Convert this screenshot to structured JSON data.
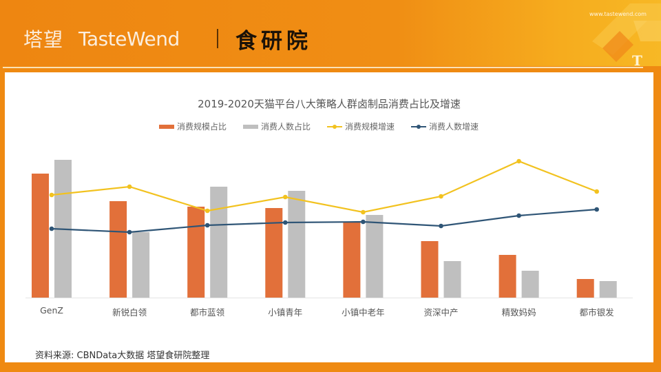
{
  "header": {
    "logo_cn": "塔望",
    "logo_en": "TasteWend",
    "institute": "食研院",
    "url": "www.tastewend.com",
    "corner_letter": "T"
  },
  "colors": {
    "brand_orange": "#ef8a12",
    "bar_scale": "#e2703a",
    "bar_people": "#bfbfbf",
    "line_scale_growth": "#f2c21f",
    "line_people_growth": "#2f5576"
  },
  "chart_data": {
    "type": "bar",
    "title": "2019-2020天猫平台八大策略人群卤制品消费占比及增速",
    "xlabel": "",
    "ylabel": "",
    "grid": false,
    "legend_position": "top",
    "categories": [
      "GenZ",
      "新锐白领",
      "都市蓝领",
      "小镇青年",
      "小镇中老年",
      "资深中产",
      "精致妈妈",
      "都市银发"
    ],
    "note": "No axis ticks shown; values are relative pixel heights (0-100 scale) estimated from bar/line positions.",
    "series": [
      {
        "name": "消费规模占比",
        "kind": "bar",
        "color": "#e2703a",
        "values": [
          90,
          70,
          66,
          65,
          55,
          41,
          31,
          13.5
        ]
      },
      {
        "name": "消费人数占比",
        "kind": "bar",
        "color": "#bfbfbf",
        "values": [
          100,
          47.5,
          80.5,
          77.5,
          60,
          26.5,
          19.5,
          12
        ]
      },
      {
        "name": "消费规模增速",
        "kind": "line",
        "color": "#f2c21f",
        "values": [
          74.5,
          80.5,
          63,
          73,
          62,
          73.5,
          99,
          77
        ]
      },
      {
        "name": "消费人数增速",
        "kind": "line",
        "color": "#2f5576",
        "values": [
          50,
          47.5,
          52.5,
          54.5,
          55,
          52,
          59.5,
          64
        ]
      }
    ]
  },
  "legend": [
    {
      "label": "消费规模占比",
      "type": "bar",
      "color": "#e2703a"
    },
    {
      "label": "消费人数占比",
      "type": "bar",
      "color": "#bfbfbf"
    },
    {
      "label": "消费规模增速",
      "type": "line",
      "color": "#f2c21f"
    },
    {
      "label": "消费人数增速",
      "type": "line",
      "color": "#2f5576"
    }
  ],
  "source": "资料来源:  CBNData大数据 塔望食研院整理"
}
